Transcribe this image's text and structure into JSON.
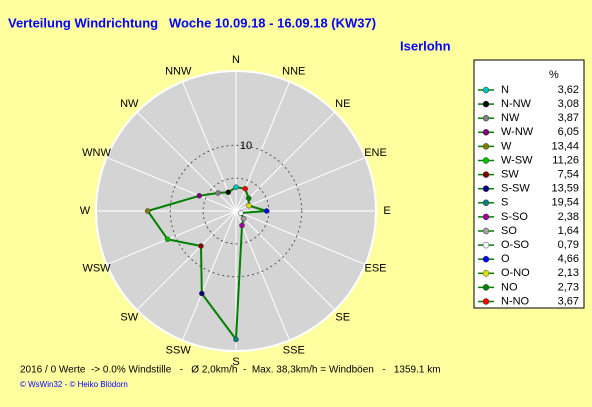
{
  "chart_data": {
    "type": "polar",
    "title": "Verteilung Windrichtung   Woche 10.09.18 - 16.09.18 (KW37)",
    "subtitle": "Iserlohn",
    "categories": [
      "N",
      "NNE",
      "NE",
      "ENE",
      "E",
      "ESE",
      "SE",
      "SSE",
      "S",
      "SSW",
      "SW",
      "WSW",
      "W",
      "WNW",
      "NW",
      "NNW"
    ],
    "rlim": [
      0,
      21.3
    ],
    "rticks": [
      10
    ],
    "rgrid": [
      5,
      10
    ],
    "legend_title": "%",
    "labels": [
      "N",
      "N-NW",
      "NW",
      "W-NW",
      "W",
      "W-SW",
      "SW",
      "S-SW",
      "S",
      "S-SO",
      "SO",
      "O-SO",
      "O",
      "O-NO",
      "NO",
      "N-NO"
    ],
    "colors": [
      "#00c0c0",
      "#000000",
      "#808080",
      "#800080",
      "#808000",
      "#00c000",
      "#800000",
      "#000080",
      "#008080",
      "#a000a0",
      "#a0a0a0",
      "#ffffff",
      "#0000ff",
      "#e0e000",
      "#008000",
      "#ff0000"
    ],
    "values": [
      3.62,
      3.08,
      3.87,
      6.05,
      13.44,
      11.26,
      7.54,
      13.59,
      19.54,
      2.38,
      1.64,
      0.79,
      4.66,
      2.13,
      2.73,
      3.67
    ],
    "value_labels": [
      "3,62",
      "3,08",
      "3,87",
      "6,05",
      "13,44",
      "11,26",
      "7,54",
      "13,59",
      "19,54",
      "2,38",
      "1,64",
      "0,79",
      "4,66",
      "2,13",
      "2,73",
      "3,67"
    ],
    "line_color": "#008000",
    "footer": "2016 / 0 Werte  -> 0.0% Windstille   -   Ø 2,0km/h  -  Max. 38,3km/h = Windböen   -   1359.1 km",
    "credit": "© WsWin32  - © Heiko Blödorn"
  }
}
